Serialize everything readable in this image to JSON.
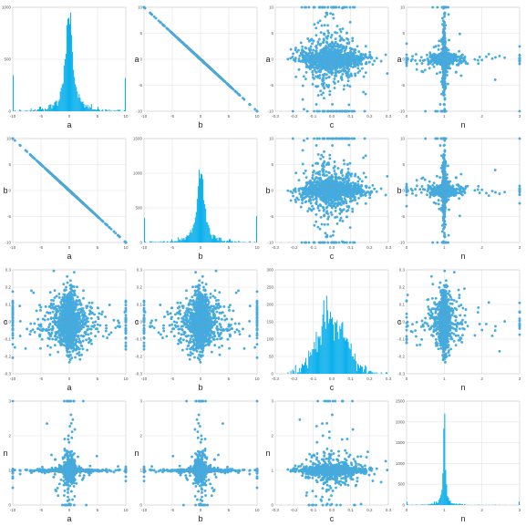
{
  "chart_data": {
    "type": "scatter_matrix",
    "variables": [
      "a",
      "b",
      "c",
      "n"
    ],
    "relations": {
      "b_equals_minus_a": true
    },
    "marker_color": "#29b6f6",
    "marker_edge_color": "#7d93ad",
    "hist_color": "#0aafec",
    "grid": true,
    "axes": {
      "a": {
        "lim": [
          -10,
          10
        ],
        "ticks": [
          "-10",
          "-5",
          "0",
          "5",
          "10"
        ]
      },
      "b": {
        "lim": [
          -10,
          10
        ],
        "ticks": [
          "-10",
          "-5",
          "0",
          "5",
          "10"
        ]
      },
      "c": {
        "lim": [
          -0.3,
          0.3
        ],
        "ticks": [
          "-0.3",
          "-0.2",
          "-0.1",
          "0.0",
          "0.1",
          "0.2",
          "0.3"
        ]
      },
      "n": {
        "lim": [
          0,
          3
        ],
        "ticks": [
          "0",
          "1",
          "2",
          "3"
        ]
      }
    },
    "histograms": {
      "a": {
        "ylim": [
          0,
          1000
        ],
        "yticks": [
          "0",
          "500",
          "1000"
        ],
        "peak": 950,
        "center": 0
      },
      "b": {
        "ylim": [
          0,
          1500
        ],
        "yticks": [
          "0",
          "500",
          "1000",
          "1500"
        ],
        "peak": 1050,
        "center": 0
      },
      "c": {
        "ylim": [
          0,
          300
        ],
        "yticks": [
          "0",
          "50",
          "100",
          "150",
          "200",
          "250",
          "300"
        ],
        "peak": 225,
        "center": 0.0,
        "sd": 0.07
      },
      "n": {
        "ylim": [
          0,
          2500
        ],
        "yticks": [
          "0",
          "500",
          "1000",
          "1500",
          "2000",
          "2500"
        ],
        "peak": 2200,
        "center": 1
      }
    }
  }
}
